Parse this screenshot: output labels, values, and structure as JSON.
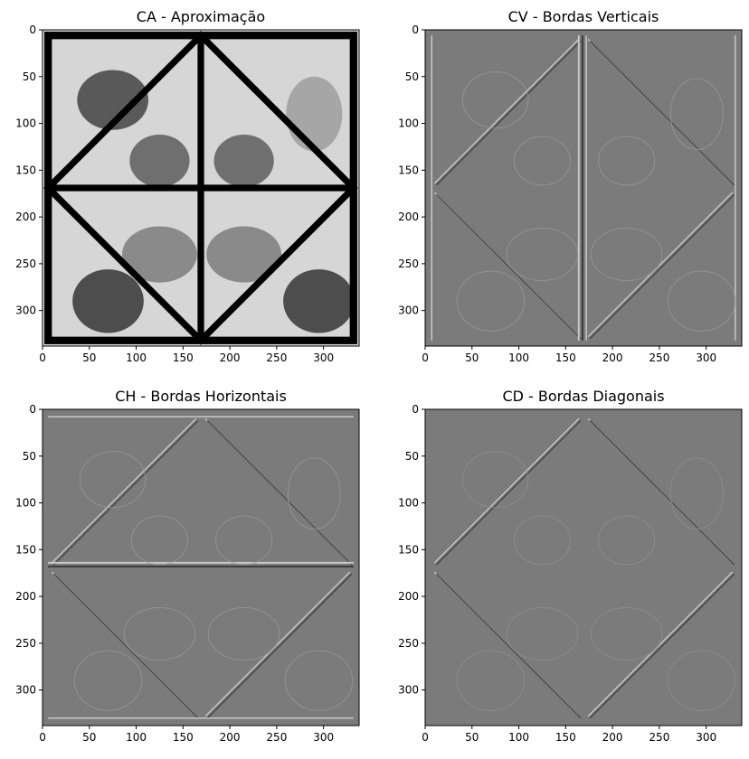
{
  "chart_data": [
    {
      "type": "heatmap",
      "title": "CA - Aproximação",
      "xlim": [
        0,
        338
      ],
      "ylim": [
        338,
        0
      ],
      "xticks": [
        0,
        50,
        100,
        150,
        200,
        250,
        300
      ],
      "yticks": [
        0,
        50,
        100,
        150,
        200,
        250,
        300
      ],
      "colormap": "gray",
      "variant": "approx"
    },
    {
      "type": "heatmap",
      "title": "CV - Bordas Verticais",
      "xlim": [
        0,
        338
      ],
      "ylim": [
        338,
        0
      ],
      "xticks": [
        0,
        50,
        100,
        150,
        200,
        250,
        300
      ],
      "yticks": [
        0,
        50,
        100,
        150,
        200,
        250,
        300
      ],
      "colormap": "gray",
      "variant": "vertical"
    },
    {
      "type": "heatmap",
      "title": "CH - Bordas Horizontais",
      "xlim": [
        0,
        338
      ],
      "ylim": [
        338,
        0
      ],
      "xticks": [
        0,
        50,
        100,
        150,
        200,
        250,
        300
      ],
      "yticks": [
        0,
        50,
        100,
        150,
        200,
        250,
        300
      ],
      "colormap": "gray",
      "variant": "horizontal"
    },
    {
      "type": "heatmap",
      "title": "CD - Bordas Diagonais",
      "xlim": [
        0,
        338
      ],
      "ylim": [
        338,
        0
      ],
      "xticks": [
        0,
        50,
        100,
        150,
        200,
        250,
        300
      ],
      "yticks": [
        0,
        50,
        100,
        150,
        200,
        250,
        300
      ],
      "colormap": "gray",
      "variant": "diagonal"
    }
  ]
}
